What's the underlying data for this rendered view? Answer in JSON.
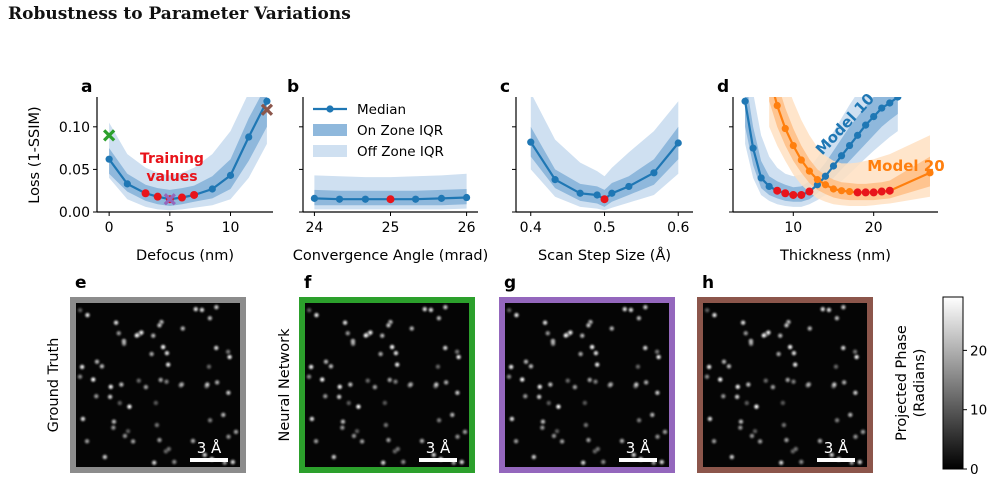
{
  "page_title": "Robustness to Parameter Variations",
  "y_axis_label": "Loss (1-SSIM)",
  "colors": {
    "blue": "#1f77b4",
    "blue_on": "#8fb8dc",
    "blue_off": "#cfe0f1",
    "orange": "#ff7f0e",
    "orange_on": "#ffbe85",
    "orange_off": "#ffe0c2",
    "red": "#e8141b",
    "green": "#2ca02c",
    "purple": "#9467bd",
    "brown": "#8c564b",
    "gray_frame": "#8c8c8c"
  },
  "legend": {
    "median": "Median",
    "on_zone": "On Zone IQR",
    "off_zone": "Off Zone IQR"
  },
  "chart_data": [
    {
      "panel": "a",
      "type": "line",
      "xlabel": "Defocus (nm)",
      "ylabel": "Loss (1-SSIM)",
      "xlim": [
        -1,
        13.5
      ],
      "ylim": [
        0,
        0.135
      ],
      "xticks": [
        0,
        5,
        10
      ],
      "yticks": [
        0.0,
        0.05,
        0.1
      ],
      "ytick_labels": [
        "0.00",
        "0.05",
        "0.10"
      ],
      "annotation": "Training\nvalues",
      "series": [
        {
          "x": [
            0,
            1.5,
            3,
            4,
            5,
            6,
            7,
            8.5,
            10,
            11.5,
            13
          ],
          "median": [
            0.062,
            0.033,
            0.022,
            0.018,
            0.015,
            0.017,
            0.02,
            0.027,
            0.043,
            0.088,
            0.13
          ],
          "on_low": [
            0.045,
            0.024,
            0.013,
            0.009,
            0.007,
            0.009,
            0.012,
            0.016,
            0.027,
            0.06,
            0.1
          ],
          "on_high": [
            0.075,
            0.045,
            0.032,
            0.028,
            0.026,
            0.028,
            0.031,
            0.042,
            0.062,
            0.11,
            0.15
          ],
          "off_low": [
            0.04,
            0.015,
            0.006,
            0.003,
            0.002,
            0.003,
            0.005,
            0.008,
            0.015,
            0.04,
            0.08
          ],
          "off_high": [
            0.105,
            0.068,
            0.052,
            0.046,
            0.043,
            0.046,
            0.052,
            0.068,
            0.095,
            0.14,
            0.16
          ],
          "training_x": [
            3,
            4,
            5,
            6,
            7
          ]
        }
      ],
      "markers": [
        {
          "x": 0,
          "y": 0.09,
          "color": "green"
        },
        {
          "x": 5,
          "y": 0.015,
          "color": "purple"
        },
        {
          "x": 13,
          "y": 0.12,
          "color": "brown"
        }
      ]
    },
    {
      "panel": "b",
      "type": "line",
      "xlabel": "Convergence Angle (mrad)",
      "xlim": [
        23.85,
        26.15
      ],
      "ylim": [
        0,
        0.135
      ],
      "xticks": [
        24,
        25,
        26
      ],
      "yticks": [
        0.0,
        0.05,
        0.1
      ],
      "series": [
        {
          "x": [
            24,
            24.33,
            24.67,
            25,
            25.33,
            25.67,
            26
          ],
          "median": [
            0.016,
            0.015,
            0.015,
            0.015,
            0.015,
            0.016,
            0.017
          ],
          "on_low": [
            0.008,
            0.008,
            0.008,
            0.008,
            0.008,
            0.008,
            0.009
          ],
          "on_high": [
            0.026,
            0.025,
            0.025,
            0.025,
            0.025,
            0.026,
            0.027
          ],
          "off_low": [
            0.003,
            0.003,
            0.003,
            0.003,
            0.003,
            0.003,
            0.004
          ],
          "off_high": [
            0.043,
            0.042,
            0.041,
            0.041,
            0.042,
            0.043,
            0.045
          ],
          "training_x": [
            25
          ]
        }
      ]
    },
    {
      "panel": "c",
      "type": "line",
      "xlabel": "Scan Step Size (Å)",
      "xlim": [
        0.38,
        0.62
      ],
      "ylim": [
        0,
        0.135
      ],
      "xticks": [
        0.4,
        0.5,
        0.6
      ],
      "yticks": [
        0.0,
        0.05,
        0.1
      ],
      "series": [
        {
          "x": [
            0.4,
            0.433,
            0.467,
            0.49,
            0.5,
            0.51,
            0.533,
            0.567,
            0.6
          ],
          "median": [
            0.082,
            0.038,
            0.022,
            0.02,
            0.015,
            0.022,
            0.03,
            0.046,
            0.081
          ],
          "on_low": [
            0.065,
            0.028,
            0.013,
            0.01,
            0.006,
            0.012,
            0.02,
            0.032,
            0.062
          ],
          "on_high": [
            0.1,
            0.05,
            0.033,
            0.03,
            0.026,
            0.034,
            0.042,
            0.062,
            0.1
          ],
          "off_low": [
            0.05,
            0.018,
            0.006,
            0.004,
            0.002,
            0.005,
            0.011,
            0.02,
            0.045
          ],
          "off_high": [
            0.14,
            0.085,
            0.058,
            0.048,
            0.042,
            0.052,
            0.07,
            0.095,
            0.13
          ],
          "training_x": [
            0.5
          ]
        }
      ]
    },
    {
      "panel": "d",
      "type": "line",
      "xlabel": "Thickness (nm)",
      "xlim": [
        2.5,
        28
      ],
      "ylim": [
        0,
        0.135
      ],
      "xticks": [
        10,
        20
      ],
      "yticks": [
        0.0,
        0.05,
        0.1
      ],
      "series": [
        {
          "name": "Model 10",
          "color": "blue",
          "x": [
            4,
            5,
            6,
            7,
            8,
            9,
            10,
            11,
            12,
            13,
            14,
            15,
            16,
            17,
            18,
            19,
            20,
            21,
            22,
            23
          ],
          "median": [
            0.13,
            0.075,
            0.04,
            0.03,
            0.025,
            0.022,
            0.02,
            0.02,
            0.024,
            0.032,
            0.042,
            0.054,
            0.066,
            0.078,
            0.09,
            0.102,
            0.112,
            0.122,
            0.128,
            0.135
          ],
          "on_low": [
            0.1,
            0.055,
            0.028,
            0.02,
            0.016,
            0.013,
            0.012,
            0.012,
            0.015,
            0.022,
            0.03,
            0.04,
            0.05,
            0.06,
            0.07,
            0.08,
            0.09,
            0.1,
            0.108,
            0.115
          ],
          "on_high": [
            0.16,
            0.1,
            0.06,
            0.042,
            0.036,
            0.032,
            0.029,
            0.03,
            0.036,
            0.046,
            0.058,
            0.072,
            0.086,
            0.1,
            0.112,
            0.124,
            0.135,
            0.145,
            0.15,
            0.155
          ],
          "off_low": [
            0.08,
            0.04,
            0.02,
            0.013,
            0.009,
            0.007,
            0.006,
            0.006,
            0.009,
            0.014,
            0.02,
            0.028,
            0.036,
            0.045,
            0.054,
            0.063,
            0.072,
            0.08,
            0.088,
            0.095
          ],
          "off_high": [
            0.19,
            0.14,
            0.09,
            0.065,
            0.052,
            0.045,
            0.042,
            0.044,
            0.052,
            0.064,
            0.078,
            0.094,
            0.11,
            0.126,
            0.14,
            0.152,
            0.162,
            0.17,
            0.175,
            0.18
          ],
          "training_x": [
            8,
            9,
            10,
            11,
            12
          ]
        },
        {
          "name": "Model 20",
          "color": "orange",
          "x": [
            7,
            8,
            9,
            10,
            11,
            12,
            13,
            14,
            15,
            16,
            17,
            18,
            19,
            20,
            21,
            22,
            27
          ],
          "median": [
            0.16,
            0.125,
            0.098,
            0.078,
            0.061,
            0.048,
            0.038,
            0.032,
            0.027,
            0.025,
            0.024,
            0.023,
            0.023,
            0.023,
            0.024,
            0.025,
            0.046
          ],
          "on_low": [
            0.13,
            0.1,
            0.078,
            0.06,
            0.046,
            0.034,
            0.026,
            0.021,
            0.017,
            0.015,
            0.014,
            0.014,
            0.014,
            0.014,
            0.015,
            0.016,
            0.03
          ],
          "on_high": [
            0.19,
            0.152,
            0.122,
            0.098,
            0.078,
            0.062,
            0.05,
            0.043,
            0.038,
            0.035,
            0.034,
            0.033,
            0.033,
            0.034,
            0.035,
            0.037,
            0.065
          ],
          "off_low": [
            0.1,
            0.078,
            0.06,
            0.044,
            0.032,
            0.023,
            0.016,
            0.012,
            0.009,
            0.008,
            0.007,
            0.007,
            0.007,
            0.008,
            0.009,
            0.01,
            0.018
          ],
          "off_high": [
            0.22,
            0.185,
            0.155,
            0.13,
            0.108,
            0.09,
            0.076,
            0.066,
            0.06,
            0.057,
            0.057,
            0.058,
            0.06,
            0.062,
            0.065,
            0.068,
            0.09
          ],
          "training_x": [
            18,
            19,
            20,
            21,
            22
          ]
        }
      ]
    }
  ],
  "images": {
    "row_label_gt": "Ground Truth",
    "row_label_nn": "Neural Network",
    "scalebar": "3 Å",
    "panels": [
      {
        "label": "e",
        "frame": "gray_frame",
        "seed": 11
      },
      {
        "label": "f",
        "frame": "green",
        "seed": 11
      },
      {
        "label": "g",
        "frame": "purple",
        "seed": 11
      },
      {
        "label": "h",
        "frame": "brown",
        "seed": 11
      }
    ],
    "colorbar": {
      "label_line1": "Projected Phase",
      "label_line2": "(Radians)",
      "ticks": [
        0,
        10,
        20
      ],
      "range": [
        0,
        29
      ]
    }
  }
}
